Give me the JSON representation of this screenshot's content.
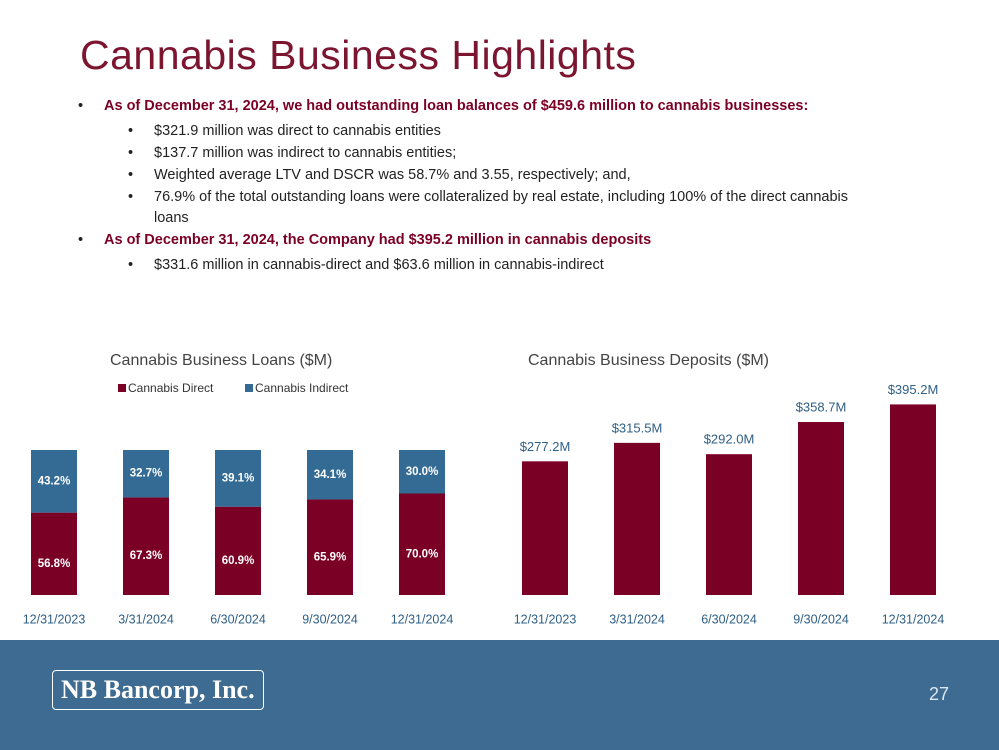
{
  "title": "Cannabis Business Highlights",
  "bullets": [
    {
      "text": "As of December 31, 2024, we had outstanding loan balances of $459.6 million to cannabis businesses:",
      "subs": [
        "$321.9 million was direct to cannabis entities",
        "$137.7 million was indirect to cannabis entities;",
        "Weighted average LTV and DSCR was 58.7% and 3.55, respectively; and,",
        "76.9% of the total outstanding loans were collateralized by real estate, including 100% of the direct cannabis loans"
      ]
    },
    {
      "text": "As of December 31, 2024, the Company had $395.2 million in cannabis deposits",
      "subs": [
        "$331.6 million in cannabis-direct and $63.6 million in cannabis-indirect"
      ]
    }
  ],
  "footer": {
    "logo": "NB Bancorp, Inc.",
    "page": "27"
  },
  "chart_data": [
    {
      "type": "stacked-bar",
      "title": "Cannabis Business Loans ($M)",
      "categories": [
        "12/31/2023",
        "3/31/2024",
        "6/30/2024",
        "9/30/2024",
        "12/31/2024"
      ],
      "series": [
        {
          "name": "Cannabis Direct",
          "color": "#7b0025",
          "values": [
            56.8,
            67.3,
            60.9,
            65.9,
            70.0
          ],
          "value_labels": [
            "56.8%",
            "67.3%",
            "60.9%",
            "65.9%",
            "70.0%"
          ]
        },
        {
          "name": "Cannabis Indirect",
          "color": "#336b94",
          "values": [
            43.2,
            32.7,
            39.1,
            34.1,
            30.0
          ],
          "value_labels": [
            "43.2%",
            "32.7%",
            "39.1%",
            "34.1%",
            "30.0%"
          ]
        }
      ],
      "ylim": [
        0,
        100
      ],
      "legend": "top-left"
    },
    {
      "type": "bar",
      "title": "Cannabis Business Deposits ($M)",
      "categories": [
        "12/31/2023",
        "3/31/2024",
        "6/30/2024",
        "9/30/2024",
        "12/31/2024"
      ],
      "values": [
        277.2,
        315.5,
        292.0,
        358.7,
        395.2
      ],
      "value_labels": [
        "$277.2M",
        "$315.5M",
        "$292.0M",
        "$358.7M",
        "$395.2M"
      ],
      "color": "#7b0025",
      "ylim": [
        0,
        450
      ]
    }
  ]
}
